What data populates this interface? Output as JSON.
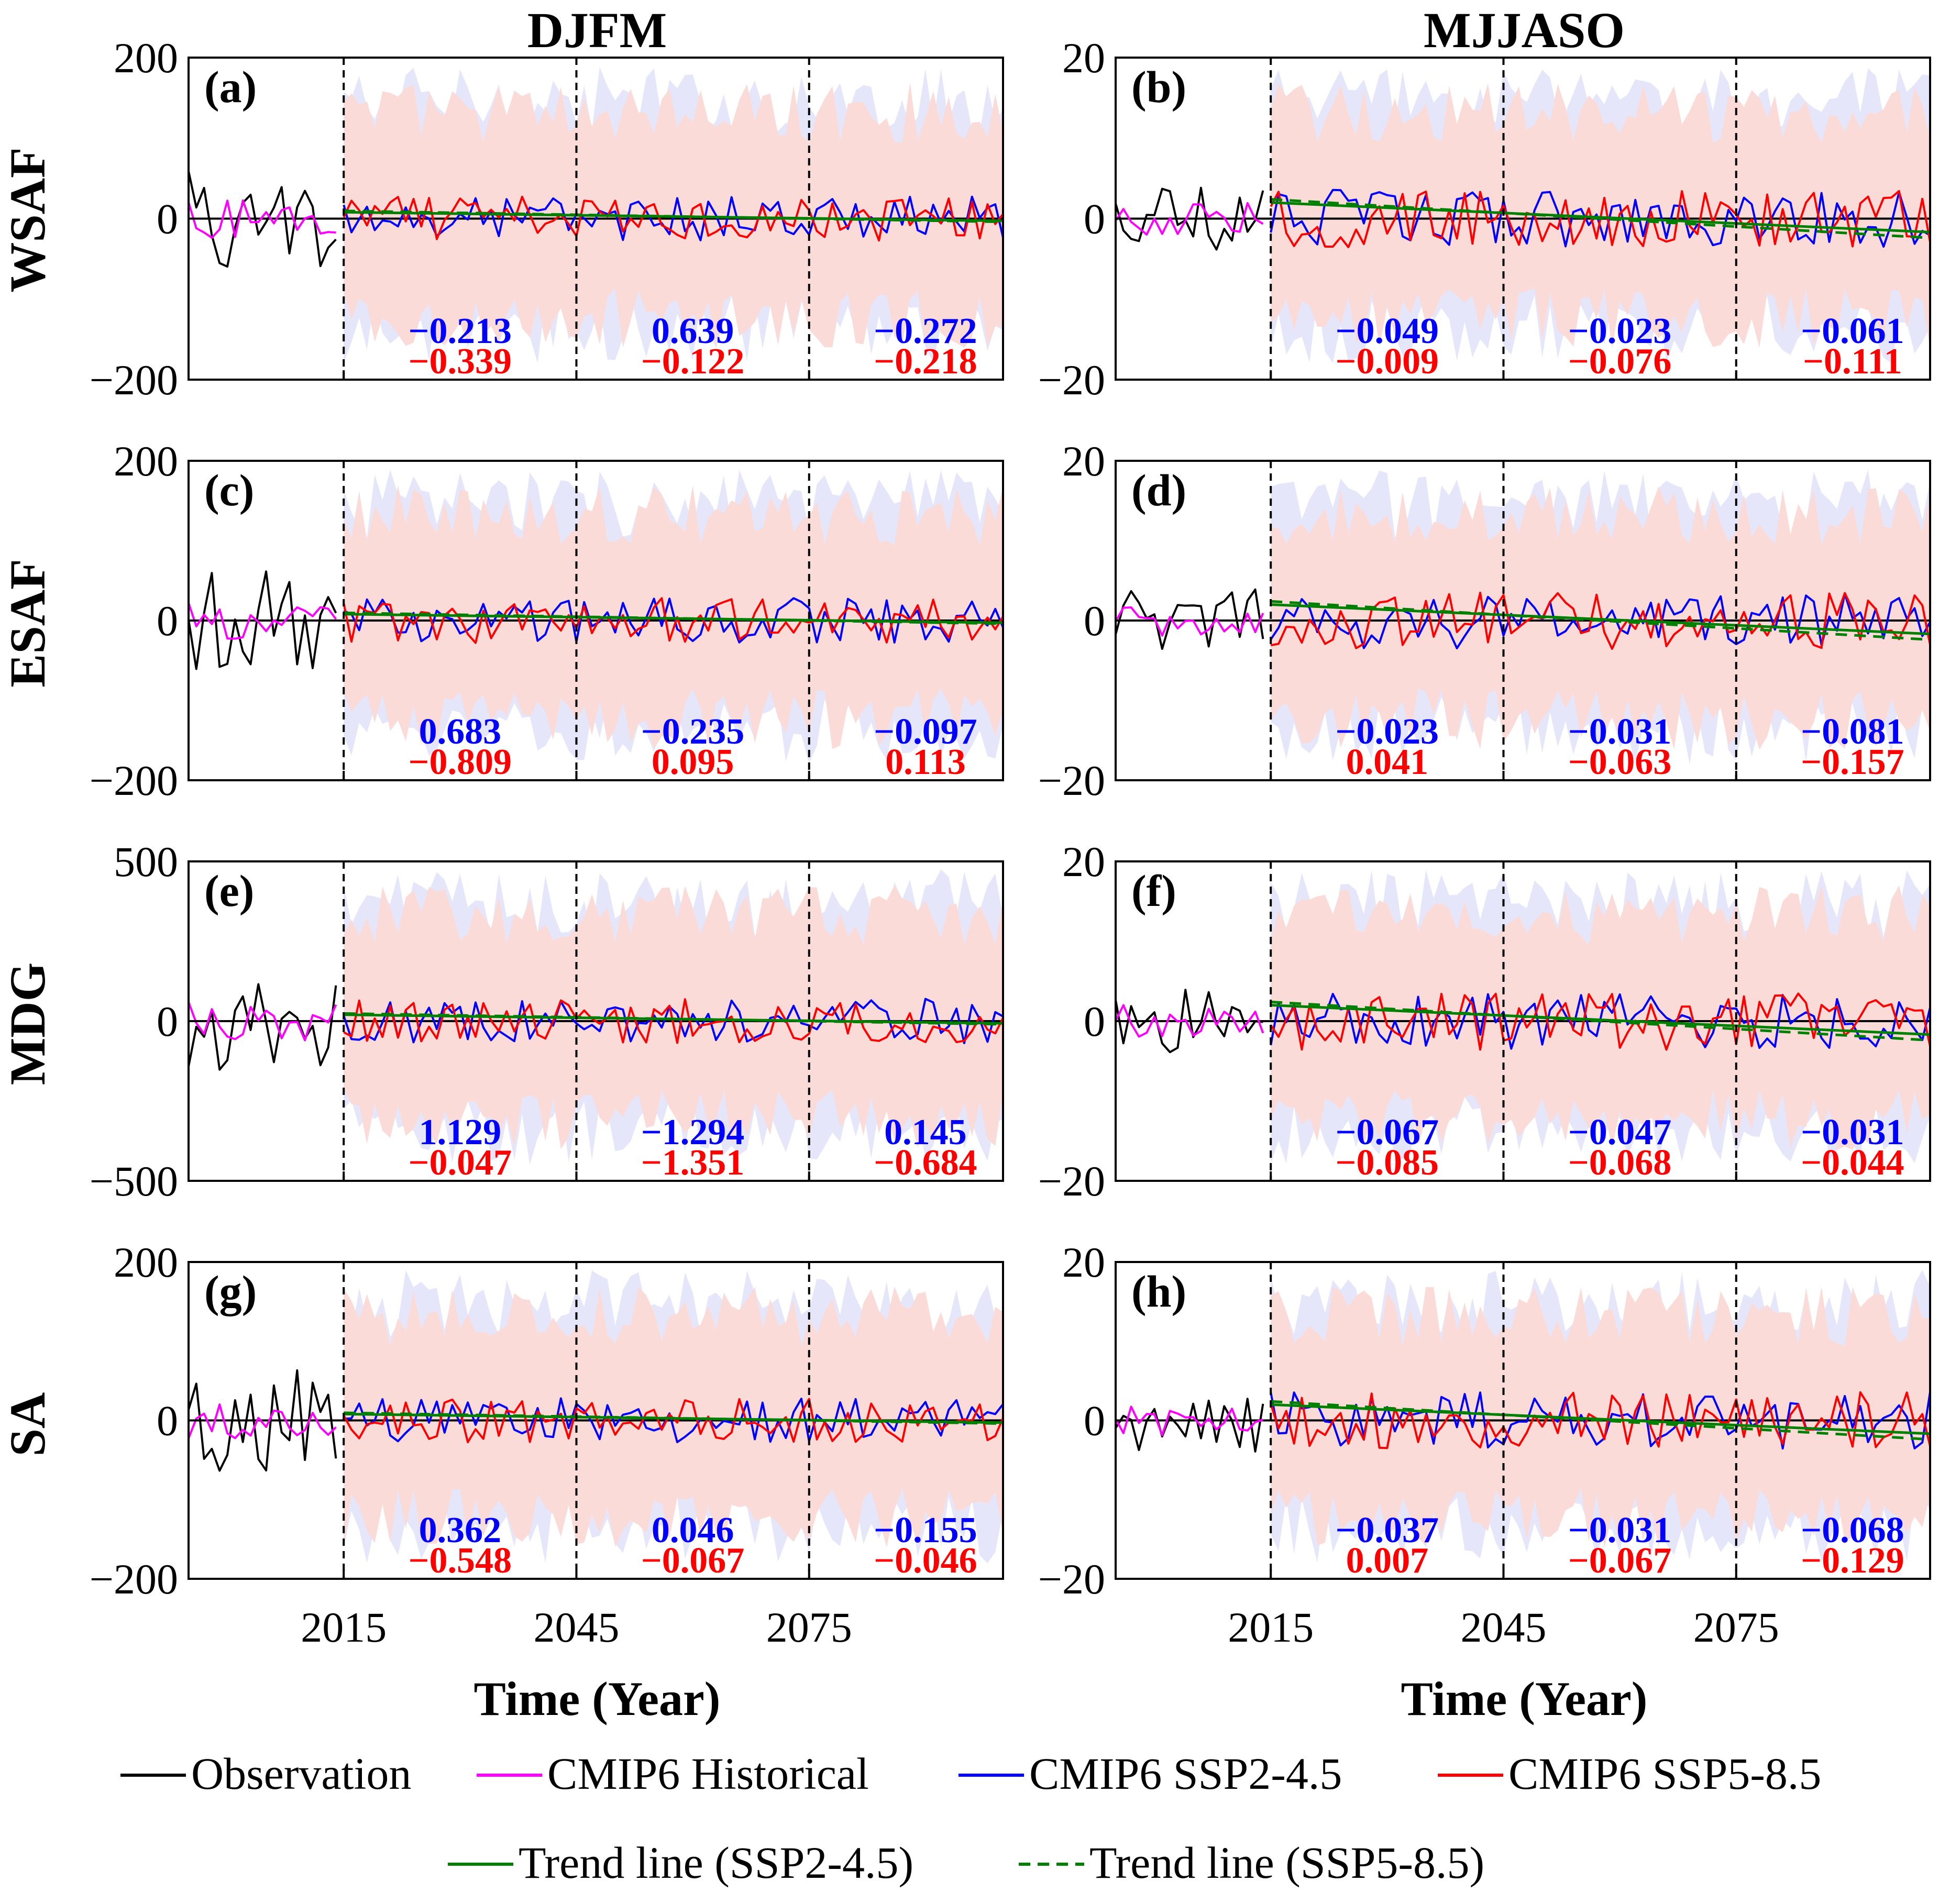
{
  "column_titles": [
    "DJFM",
    "MJJASO"
  ],
  "row_labels": [
    "WSAF",
    "ESAF",
    "MDG",
    "SA"
  ],
  "x_label": "Time (Year)",
  "x_ticks": [
    2015,
    2045,
    2075
  ],
  "x_range": [
    1995,
    2100
  ],
  "period_dividers": [
    2015,
    2045,
    2075
  ],
  "colors": {
    "observation": "#000000",
    "historical": "#ff00ff",
    "ssp245": "#0000ff",
    "ssp585": "#ff0000",
    "trend": "#008000",
    "band245": "#e6e6fa",
    "band585": "#fadbd8"
  },
  "legend": {
    "row1": [
      "Observation",
      "CMIP6 Historical",
      "CMIP6 SSP2-4.5",
      "CMIP6 SSP5-8.5"
    ],
    "row2": [
      "Trend line (SSP2-4.5)",
      "Trend line (SSP5-8.5)"
    ]
  },
  "chart_data": [
    {
      "panel": "(a)",
      "row": "WSAF",
      "season": "DJFM",
      "type": "line",
      "ylim": [
        -200,
        200
      ],
      "yticks": [
        "200",
        "0",
        "−200"
      ],
      "trend_ssp245": [
        "−0.213",
        "0.639",
        "−0.272"
      ],
      "trend_ssp585": [
        "−0.339",
        "−0.122",
        "−0.218"
      ]
    },
    {
      "panel": "(b)",
      "row": "WSAF",
      "season": "MJJASO",
      "type": "line",
      "ylim": [
        -20,
        20
      ],
      "yticks": [
        "20",
        "0",
        "−20"
      ],
      "trend_ssp245": [
        "−0.049",
        "−0.023",
        "−0.061"
      ],
      "trend_ssp585": [
        "−0.009",
        "−0.076",
        "−0.111"
      ]
    },
    {
      "panel": "(c)",
      "row": "ESAF",
      "season": "DJFM",
      "type": "line",
      "ylim": [
        -200,
        200
      ],
      "yticks": [
        "200",
        "0",
        "−200"
      ],
      "trend_ssp245": [
        "0.683",
        "−0.235",
        "−0.097"
      ],
      "trend_ssp585": [
        "−0.809",
        "0.095",
        "0.113"
      ]
    },
    {
      "panel": "(d)",
      "row": "ESAF",
      "season": "MJJASO",
      "type": "line",
      "ylim": [
        -20,
        20
      ],
      "yticks": [
        "20",
        "0",
        "−20"
      ],
      "trend_ssp245": [
        "−0.023",
        "−0.031",
        "−0.081"
      ],
      "trend_ssp585": [
        "0.041",
        "−0.063",
        "−0.157"
      ]
    },
    {
      "panel": "(e)",
      "row": "MDG",
      "season": "DJFM",
      "type": "line",
      "ylim": [
        -500,
        500
      ],
      "yticks": [
        "500",
        "0",
        "−500"
      ],
      "trend_ssp245": [
        "1.129",
        "−1.294",
        "0.145"
      ],
      "trend_ssp585": [
        "−0.047",
        "−1.351",
        "−0.684"
      ]
    },
    {
      "panel": "(f)",
      "row": "MDG",
      "season": "MJJASO",
      "type": "line",
      "ylim": [
        -20,
        20
      ],
      "yticks": [
        "20",
        "0",
        "−20"
      ],
      "trend_ssp245": [
        "−0.067",
        "−0.047",
        "−0.031"
      ],
      "trend_ssp585": [
        "−0.085",
        "−0.068",
        "−0.044"
      ]
    },
    {
      "panel": "(g)",
      "row": "SA",
      "season": "DJFM",
      "type": "line",
      "ylim": [
        -200,
        200
      ],
      "yticks": [
        "200",
        "0",
        "−200"
      ],
      "trend_ssp245": [
        "0.362",
        "0.046",
        "−0.155"
      ],
      "trend_ssp585": [
        "−0.548",
        "−0.067",
        "−0.046"
      ]
    },
    {
      "panel": "(h)",
      "row": "SA",
      "season": "MJJASO",
      "type": "line",
      "ylim": [
        -20,
        20
      ],
      "yticks": [
        "20",
        "0",
        "−20"
      ],
      "trend_ssp245": [
        "−0.037",
        "−0.031",
        "−0.068"
      ],
      "trend_ssp585": [
        "0.007",
        "−0.067",
        "−0.129"
      ]
    }
  ]
}
